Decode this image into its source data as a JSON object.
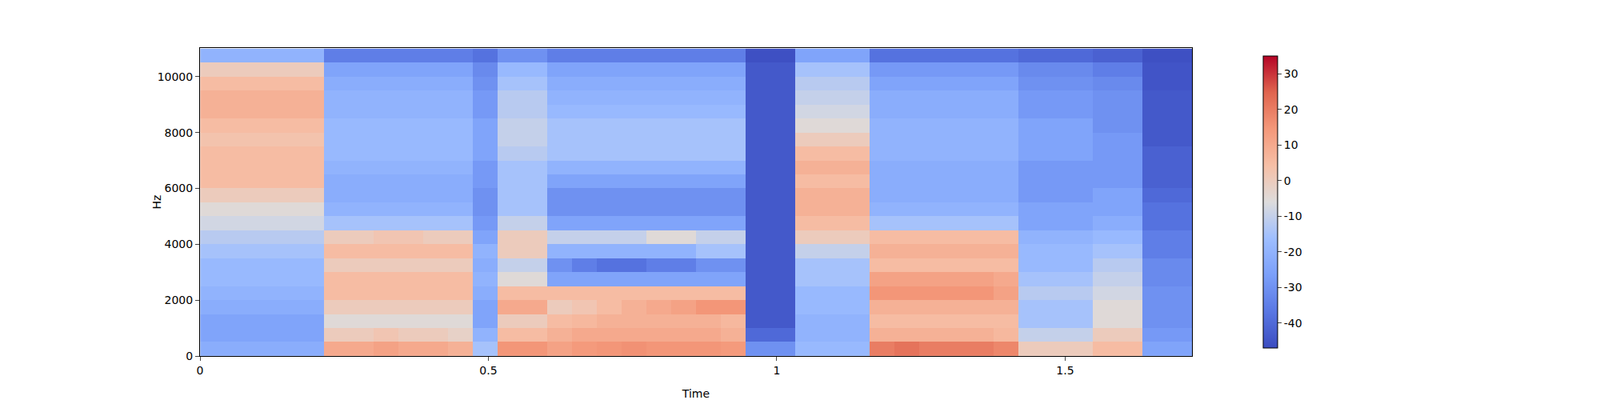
{
  "chart_data": {
    "type": "heatmap",
    "color": "coolwarm",
    "x_label": "Time",
    "y_label": "Hz",
    "xlim": [
      0,
      1.72
    ],
    "xticks": [
      0,
      0.5,
      1,
      1.5
    ],
    "ylim": [
      0,
      11025
    ],
    "yticks": [
      0,
      2000,
      4000,
      6000,
      8000,
      10000
    ],
    "zlim": [
      -47,
      35
    ],
    "zticks": [
      -40,
      -30,
      -20,
      -10,
      0,
      10,
      20,
      30
    ],
    "x": [
      0.022,
      0.065,
      0.108,
      0.151,
      0.194,
      0.237,
      0.28,
      0.323,
      0.366,
      0.409,
      0.452,
      0.495,
      0.538,
      0.581,
      0.624,
      0.667,
      0.71,
      0.753,
      0.796,
      0.839,
      0.882,
      0.925,
      0.968,
      1.011,
      1.054,
      1.097,
      1.14,
      1.183,
      1.226,
      1.269,
      1.312,
      1.355,
      1.398,
      1.441,
      1.484,
      1.527,
      1.57,
      1.613,
      1.656,
      1.699
    ],
    "y": [
      250,
      750,
      1250,
      1750,
      2250,
      2750,
      3250,
      3750,
      4250,
      4750,
      5250,
      5750,
      6250,
      6750,
      7250,
      7750,
      8250,
      8750,
      9250,
      9750,
      10250,
      10750
    ],
    "cells": [
      [
        -22,
        -22,
        -22,
        -22,
        -22,
        10,
        10,
        12,
        10,
        10,
        8,
        -15,
        15,
        15,
        12,
        14,
        15,
        16,
        15,
        15,
        15,
        14,
        -30,
        -30,
        -18,
        -18,
        -18,
        20,
        22,
        20,
        20,
        20,
        18,
        0,
        0,
        0,
        5,
        5,
        -25,
        -25
      ],
      [
        -25,
        -25,
        -25,
        -25,
        -25,
        0,
        0,
        2,
        0,
        0,
        -2,
        -20,
        5,
        5,
        8,
        10,
        10,
        10,
        10,
        10,
        10,
        8,
        -40,
        -40,
        -20,
        -20,
        -20,
        8,
        8,
        8,
        8,
        8,
        6,
        -10,
        -10,
        -10,
        0,
        0,
        -28,
        -28
      ],
      [
        -25,
        -25,
        -25,
        -25,
        -25,
        -5,
        -5,
        -5,
        -5,
        -5,
        -5,
        -25,
        0,
        0,
        5,
        6,
        8,
        8,
        8,
        8,
        8,
        6,
        -44,
        -44,
        -20,
        -20,
        -20,
        5,
        5,
        5,
        5,
        5,
        5,
        -15,
        -15,
        -15,
        -5,
        -5,
        -30,
        -30
      ],
      [
        -22,
        -22,
        -22,
        -22,
        -22,
        0,
        0,
        0,
        0,
        0,
        0,
        -25,
        10,
        10,
        0,
        2,
        5,
        8,
        10,
        12,
        15,
        15,
        -44,
        -44,
        -18,
        -18,
        -18,
        8,
        8,
        8,
        8,
        8,
        8,
        -15,
        -15,
        -15,
        -5,
        -5,
        -30,
        -30
      ],
      [
        -20,
        -20,
        -20,
        -20,
        -20,
        5,
        5,
        5,
        5,
        5,
        5,
        -22,
        5,
        5,
        5,
        5,
        5,
        5,
        5,
        5,
        5,
        5,
        -44,
        -44,
        -18,
        -18,
        -18,
        15,
        15,
        15,
        15,
        15,
        12,
        -12,
        -12,
        -12,
        -8,
        -8,
        -30,
        -30
      ],
      [
        -18,
        -18,
        -18,
        -18,
        -18,
        5,
        5,
        5,
        5,
        5,
        5,
        -20,
        -5,
        -5,
        -25,
        -25,
        -25,
        -25,
        -25,
        -25,
        -25,
        -25,
        -44,
        -44,
        -15,
        -15,
        -15,
        12,
        12,
        12,
        12,
        12,
        10,
        -15,
        -15,
        -15,
        -10,
        -10,
        -32,
        -32
      ],
      [
        -18,
        -18,
        -18,
        -18,
        -18,
        0,
        0,
        0,
        0,
        0,
        0,
        -22,
        -10,
        -10,
        -30,
        -35,
        -38,
        -38,
        -35,
        -35,
        -30,
        -30,
        -44,
        -44,
        -15,
        -15,
        -15,
        5,
        5,
        5,
        5,
        5,
        5,
        -18,
        -18,
        -18,
        -12,
        -12,
        -32,
        -32
      ],
      [
        -15,
        -15,
        -15,
        -15,
        -15,
        5,
        5,
        5,
        5,
        5,
        5,
        -20,
        0,
        0,
        -20,
        -20,
        -20,
        -20,
        -20,
        -20,
        -15,
        -15,
        -44,
        -44,
        -10,
        -10,
        -10,
        8,
        8,
        8,
        8,
        8,
        8,
        -18,
        -18,
        -18,
        -15,
        -15,
        -35,
        -35
      ],
      [
        -12,
        -12,
        -12,
        -12,
        -12,
        0,
        0,
        2,
        2,
        0,
        0,
        -25,
        0,
        0,
        -10,
        -10,
        -10,
        -10,
        -5,
        -5,
        -10,
        -10,
        -44,
        -44,
        0,
        0,
        0,
        5,
        5,
        5,
        5,
        5,
        5,
        -20,
        -20,
        -20,
        -18,
        -18,
        -35,
        -35
      ],
      [
        -8,
        -8,
        -8,
        -8,
        -8,
        -15,
        -15,
        -15,
        -15,
        -15,
        -15,
        -28,
        -10,
        -10,
        -25,
        -25,
        -25,
        -25,
        -25,
        -25,
        -25,
        -25,
        -44,
        -44,
        5,
        5,
        5,
        -15,
        -15,
        -15,
        -15,
        -15,
        -15,
        -25,
        -25,
        -25,
        -22,
        -22,
        -38,
        -38
      ],
      [
        -5,
        -5,
        -5,
        -5,
        -5,
        -20,
        -20,
        -20,
        -20,
        -20,
        -20,
        -30,
        -15,
        -15,
        -30,
        -30,
        -30,
        -30,
        -30,
        -30,
        -30,
        -30,
        -44,
        -44,
        8,
        8,
        8,
        -20,
        -20,
        -20,
        -20,
        -20,
        -20,
        -25,
        -25,
        -25,
        -25,
        -25,
        -38,
        -38
      ],
      [
        0,
        0,
        0,
        0,
        0,
        -22,
        -22,
        -22,
        -22,
        -22,
        -22,
        -30,
        -15,
        -15,
        -30,
        -30,
        -30,
        -30,
        -30,
        -30,
        -30,
        -30,
        -44,
        -44,
        8,
        8,
        8,
        -22,
        -22,
        -22,
        -22,
        -22,
        -22,
        -28,
        -28,
        -28,
        -25,
        -25,
        -40,
        -40
      ],
      [
        5,
        5,
        5,
        5,
        5,
        -22,
        -22,
        -22,
        -22,
        -22,
        -22,
        -28,
        -15,
        -15,
        -25,
        -25,
        -25,
        -25,
        -25,
        -25,
        -25,
        -25,
        -44,
        -44,
        5,
        5,
        5,
        -22,
        -22,
        -22,
        -22,
        -22,
        -22,
        -28,
        -28,
        -28,
        -28,
        -28,
        -42,
        -42
      ],
      [
        5,
        5,
        5,
        5,
        5,
        -20,
        -20,
        -20,
        -20,
        -20,
        -20,
        -28,
        -15,
        -15,
        -20,
        -20,
        -20,
        -20,
        -20,
        -20,
        -20,
        -20,
        -44,
        -44,
        8,
        8,
        8,
        -22,
        -22,
        -22,
        -22,
        -22,
        -22,
        -28,
        -28,
        -28,
        -28,
        -28,
        -42,
        -42
      ],
      [
        5,
        5,
        5,
        5,
        5,
        -18,
        -18,
        -18,
        -18,
        -18,
        -18,
        -25,
        -12,
        -12,
        -15,
        -15,
        -15,
        -15,
        -15,
        -15,
        -15,
        -15,
        -44,
        -44,
        5,
        5,
        5,
        -20,
        -20,
        -20,
        -20,
        -20,
        -20,
        -25,
        -25,
        -25,
        -28,
        -28,
        -42,
        -42
      ],
      [
        3,
        3,
        3,
        3,
        3,
        -18,
        -18,
        -18,
        -18,
        -18,
        -18,
        -25,
        -10,
        -10,
        -15,
        -15,
        -15,
        -15,
        -15,
        -15,
        -15,
        -15,
        -44,
        -44,
        0,
        0,
        0,
        -20,
        -20,
        -20,
        -20,
        -20,
        -20,
        -25,
        -25,
        -25,
        -28,
        -28,
        -44,
        -44
      ],
      [
        5,
        5,
        5,
        5,
        5,
        -18,
        -18,
        -18,
        -18,
        -18,
        -18,
        -25,
        -10,
        -10,
        -15,
        -15,
        -15,
        -15,
        -15,
        -15,
        -15,
        -15,
        -44,
        -44,
        -5,
        -5,
        -5,
        -20,
        -20,
        -20,
        -20,
        -20,
        -20,
        -25,
        -25,
        -25,
        -30,
        -30,
        -44,
        -44
      ],
      [
        8,
        8,
        8,
        8,
        8,
        -20,
        -20,
        -20,
        -20,
        -20,
        -20,
        -28,
        -12,
        -12,
        -18,
        -18,
        -18,
        -18,
        -18,
        -18,
        -18,
        -18,
        -44,
        -44,
        -8,
        -8,
        -8,
        -22,
        -22,
        -22,
        -22,
        -22,
        -22,
        -28,
        -28,
        -28,
        -30,
        -30,
        -44,
        -44
      ],
      [
        8,
        8,
        8,
        8,
        8,
        -20,
        -20,
        -20,
        -20,
        -20,
        -20,
        -28,
        -12,
        -12,
        -20,
        -20,
        -20,
        -20,
        -20,
        -20,
        -20,
        -20,
        -44,
        -44,
        -10,
        -10,
        -10,
        -22,
        -22,
        -22,
        -22,
        -22,
        -22,
        -28,
        -28,
        -28,
        -30,
        -30,
        -44,
        -44
      ],
      [
        5,
        5,
        5,
        5,
        5,
        -22,
        -22,
        -22,
        -22,
        -22,
        -22,
        -30,
        -15,
        -15,
        -22,
        -22,
        -22,
        -22,
        -22,
        -22,
        -22,
        -22,
        -44,
        -44,
        -12,
        -12,
        -12,
        -25,
        -25,
        -25,
        -25,
        -25,
        -25,
        -30,
        -30,
        -30,
        -32,
        -32,
        -45,
        -45
      ],
      [
        0,
        0,
        0,
        0,
        0,
        -25,
        -25,
        -25,
        -25,
        -25,
        -25,
        -32,
        -18,
        -18,
        -25,
        -25,
        -25,
        -25,
        -25,
        -25,
        -25,
        -25,
        -44,
        -44,
        -15,
        -15,
        -15,
        -28,
        -28,
        -28,
        -28,
        -28,
        -28,
        -32,
        -32,
        -32,
        -35,
        -35,
        -45,
        -45
      ],
      [
        -20,
        -20,
        -20,
        -20,
        -20,
        -35,
        -35,
        -35,
        -35,
        -35,
        -35,
        -38,
        -30,
        -30,
        -35,
        -35,
        -35,
        -35,
        -35,
        -35,
        -35,
        -35,
        -46,
        -46,
        -25,
        -25,
        -25,
        -38,
        -38,
        -38,
        -38,
        -38,
        -38,
        -40,
        -40,
        -40,
        -42,
        -42,
        -46,
        -46
      ]
    ]
  }
}
